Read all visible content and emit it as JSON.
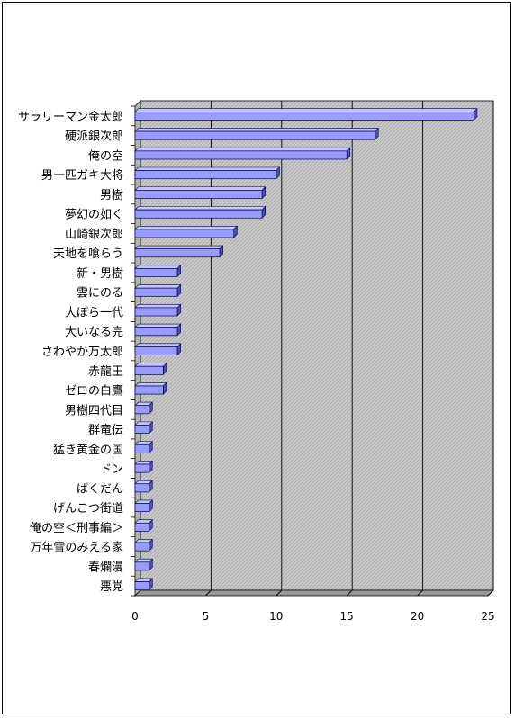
{
  "chart_data": {
    "type": "bar",
    "orientation": "horizontal",
    "categories": [
      "サラリーマン金太郎",
      "硬派銀次郎",
      "俺の空",
      "男一匹ガキ大将",
      "男樹",
      "夢幻の如く",
      "山崎銀次郎",
      "天地を喰らう",
      "新・男樹",
      "雲にのる",
      "大ぼら一代",
      "大いなる完",
      "さわやか万太郎",
      "赤龍王",
      "ゼロの白鷹",
      "男樹四代目",
      "群竜伝",
      "猛き黄金の国",
      "ドン",
      "ばくだん",
      "げんこつ街道",
      "俺の空＜刑事編＞",
      "万年雪のみえる家",
      "春爛漫",
      "悪党"
    ],
    "values": [
      24,
      17,
      15,
      10,
      9,
      9,
      7,
      6,
      3,
      3,
      3,
      3,
      3,
      2,
      2,
      1,
      1,
      1,
      1,
      1,
      1,
      1,
      1,
      1,
      1
    ],
    "xlim": [
      0,
      25
    ],
    "xticks": [
      "0",
      "5",
      "10",
      "15",
      "20",
      "25"
    ],
    "grid": true,
    "title": "",
    "xlabel": "",
    "ylabel": "",
    "colors": {
      "bar_face": "#9a9aff",
      "bar_top": "#c4c4ff",
      "bar_side": "#5050a8",
      "bar_edge": "#000040",
      "plot_bg": "#c8c8c8",
      "wall": "#b4b4b4",
      "gridline": "#000000"
    }
  }
}
